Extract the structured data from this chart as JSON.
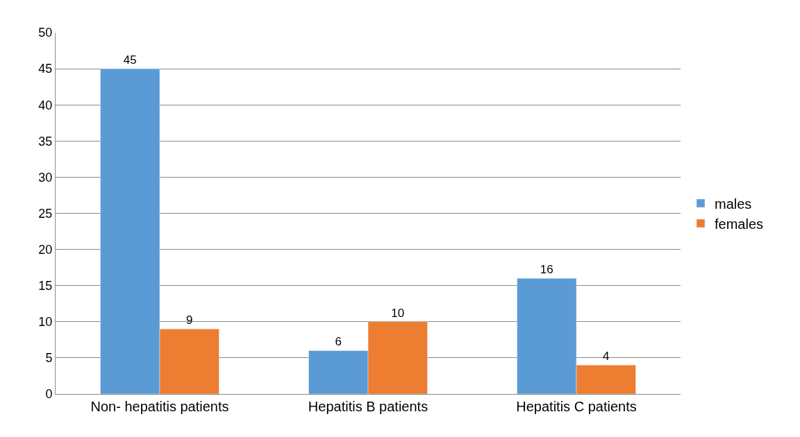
{
  "chart_data": {
    "type": "bar",
    "categories": [
      "Non- hepatitis patients",
      "Hepatitis B patients",
      "Hepatitis C patients"
    ],
    "series": [
      {
        "name": "males",
        "color": "#5b9bd5",
        "values": [
          45,
          6,
          16
        ]
      },
      {
        "name": "females",
        "color": "#ed7d31",
        "values": [
          9,
          10,
          4
        ]
      }
    ],
    "ylim": [
      0,
      50
    ],
    "yticks": [
      0,
      5,
      10,
      15,
      20,
      25,
      30,
      35,
      40,
      45,
      50
    ],
    "grid": "y",
    "legend": "right",
    "data_labels": true
  }
}
